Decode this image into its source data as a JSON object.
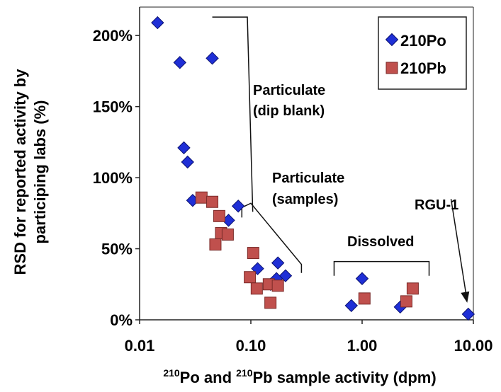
{
  "chart_data": {
    "type": "scatter",
    "xscale": "log",
    "xlim": [
      0.01,
      10
    ],
    "ylim": [
      0,
      2.2
    ],
    "x_ticks": [
      {
        "value": 0.01,
        "label": "0.01"
      },
      {
        "value": 0.1,
        "label": "0.10"
      },
      {
        "value": 1,
        "label": "1.00"
      },
      {
        "value": 10,
        "label": "10.00"
      }
    ],
    "y_ticks": [
      {
        "value": 0,
        "label": "0%"
      },
      {
        "value": 0.5,
        "label": "50%"
      },
      {
        "value": 1.0,
        "label": "100%"
      },
      {
        "value": 1.5,
        "label": "150%"
      },
      {
        "value": 2.0,
        "label": "200%"
      }
    ],
    "ylabel_line1": "RSD for reported activity by",
    "ylabel_line2": "participing labs (%)",
    "xlabel": {
      "sup1": "210",
      "t1": "Po and ",
      "sup2": "210",
      "t2": "Pb sample activity (dpm)"
    },
    "grid": false,
    "legend_position": "top-right",
    "series": [
      {
        "name": "210Po",
        "marker": "diamond",
        "color": "#1f2fd6",
        "points": [
          [
            0.0145,
            2.09
          ],
          [
            0.023,
            1.81
          ],
          [
            0.045,
            1.84
          ],
          [
            0.025,
            1.21
          ],
          [
            0.027,
            1.11
          ],
          [
            0.03,
            0.84
          ],
          [
            0.063,
            0.7
          ],
          [
            0.077,
            0.8
          ],
          [
            0.115,
            0.36
          ],
          [
            0.175,
            0.4
          ],
          [
            0.205,
            0.31
          ],
          [
            0.17,
            0.29
          ],
          [
            0.15,
            0.25
          ],
          [
            0.8,
            0.1
          ],
          [
            1.0,
            0.29
          ],
          [
            2.2,
            0.09
          ],
          [
            9.0,
            0.04
          ]
        ]
      },
      {
        "name": "210Pb",
        "marker": "square",
        "color": "#c0504d",
        "points": [
          [
            0.036,
            0.86
          ],
          [
            0.045,
            0.83
          ],
          [
            0.052,
            0.73
          ],
          [
            0.048,
            0.53
          ],
          [
            0.054,
            0.61
          ],
          [
            0.062,
            0.6
          ],
          [
            0.105,
            0.47
          ],
          [
            0.098,
            0.3
          ],
          [
            0.113,
            0.22
          ],
          [
            0.145,
            0.25
          ],
          [
            0.175,
            0.24
          ],
          [
            0.15,
            0.12
          ],
          [
            1.05,
            0.15
          ],
          [
            2.5,
            0.13
          ],
          [
            2.85,
            0.22
          ]
        ]
      }
    ],
    "annotations": {
      "dip_blank_line1": "Particulate",
      "dip_blank_line2": "(dip blank)",
      "samples_line1": "Particulate",
      "samples_line2": "(samples)",
      "dissolved": "Dissolved",
      "rgu": "RGU-1"
    }
  }
}
